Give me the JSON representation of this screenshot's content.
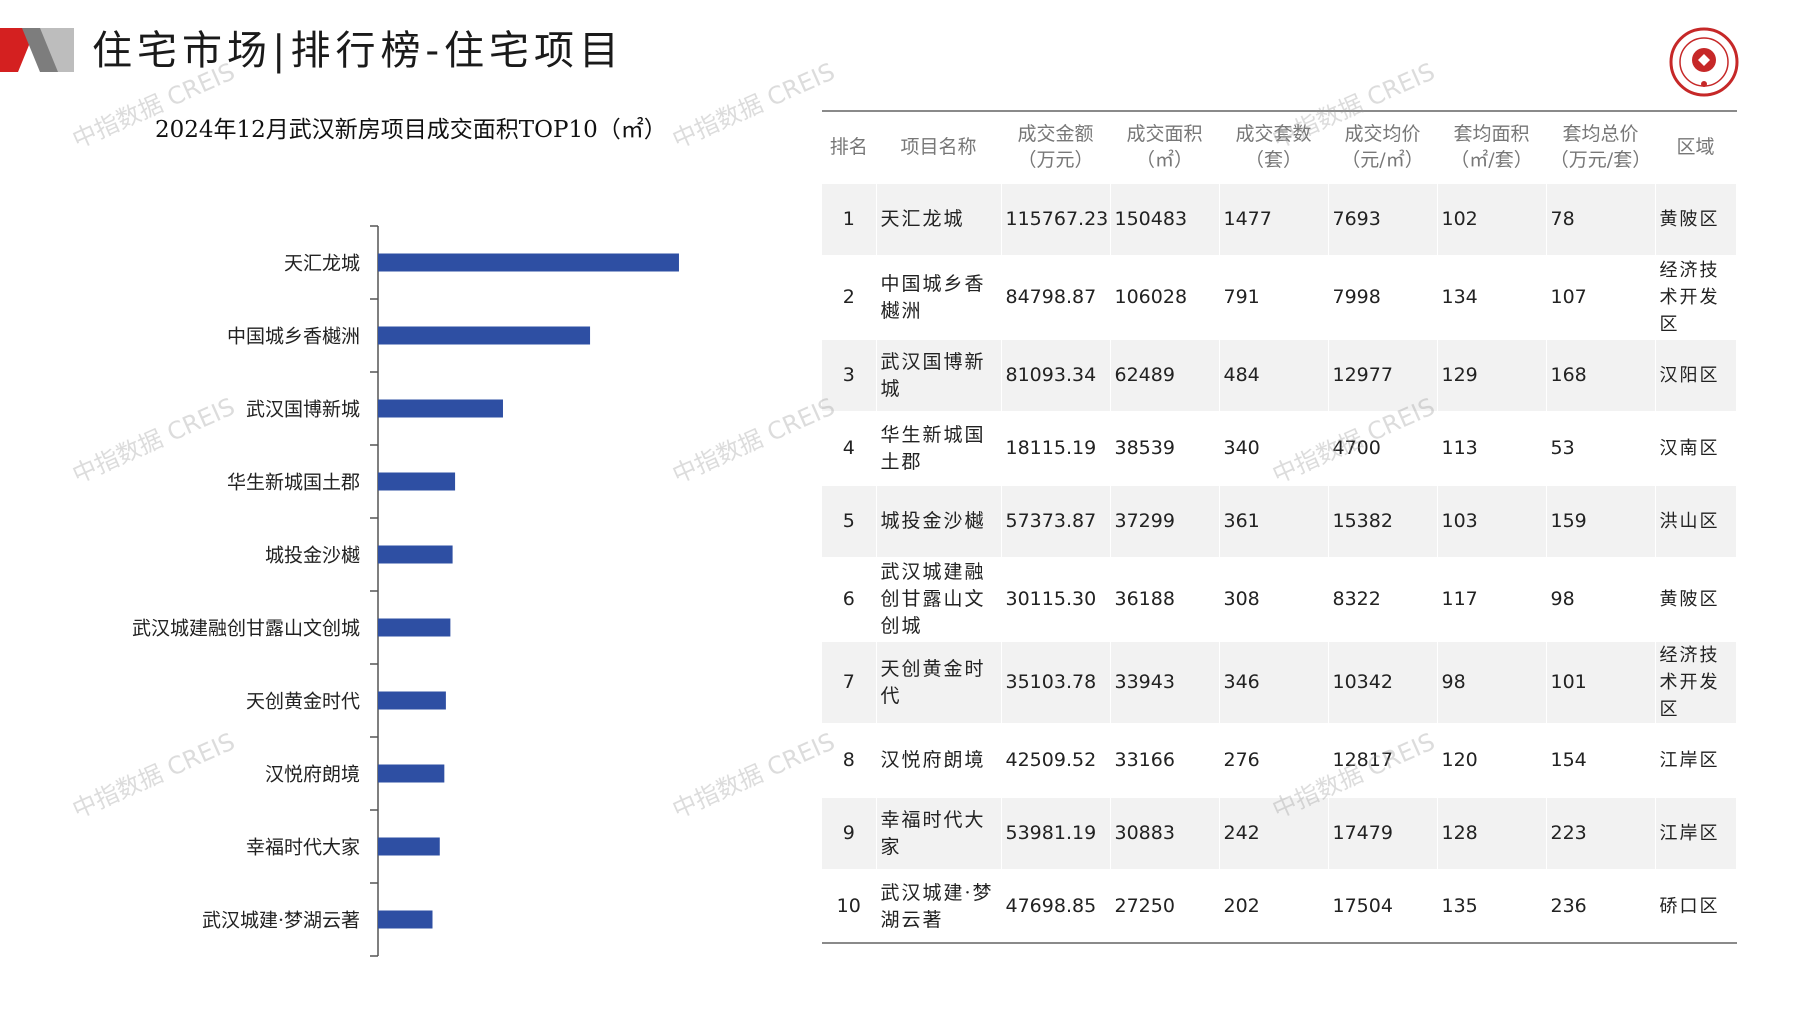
{
  "header": {
    "title": "住宅市场|排行榜-住宅项目",
    "accent_color": "#d42020"
  },
  "chart_data": {
    "type": "bar",
    "orientation": "horizontal",
    "title": "2024年12月武汉新房项目成交面积TOP10（㎡）",
    "categories": [
      "天汇龙城",
      "中国城乡香樾洲",
      "武汉国博新城",
      "华生新城国土郡",
      "城投金沙樾",
      "武汉城建融创甘露山文创城",
      "天创黄金时代",
      "汉悦府朗境",
      "幸福时代大家",
      "武汉城建·梦湖云著"
    ],
    "values": [
      150483,
      106028,
      62489,
      38539,
      37299,
      36188,
      33943,
      33166,
      30883,
      27250
    ],
    "xlim": [
      0,
      170000
    ],
    "bar_color": "#2e4fa3",
    "grid": false,
    "legend": "none"
  },
  "table": {
    "headers": [
      "排名",
      "项目名称",
      "成交金额（万元）",
      "成交面积（㎡）",
      "成交套数（套）",
      "成交均价（元/㎡）",
      "套均面积（㎡/套）",
      "套均总价（万元/套）",
      "区域"
    ],
    "rows": [
      [
        "1",
        "天汇龙城",
        "115767.23",
        "150483",
        "1477",
        "7693",
        "102",
        "78",
        "黄陂区"
      ],
      [
        "2",
        "中国城乡香樾洲",
        "84798.87",
        "106028",
        "791",
        "7998",
        "134",
        "107",
        "经济技术开发区"
      ],
      [
        "3",
        "武汉国博新城",
        "81093.34",
        "62489",
        "484",
        "12977",
        "129",
        "168",
        "汉阳区"
      ],
      [
        "4",
        "华生新城国土郡",
        "18115.19",
        "38539",
        "340",
        "4700",
        "113",
        "53",
        "汉南区"
      ],
      [
        "5",
        "城投金沙樾",
        "57373.87",
        "37299",
        "361",
        "15382",
        "103",
        "159",
        "洪山区"
      ],
      [
        "6",
        "武汉城建融创甘露山文创城",
        "30115.30",
        "36188",
        "308",
        "8322",
        "117",
        "98",
        "黄陂区"
      ],
      [
        "7",
        "天创黄金时代",
        "35103.78",
        "33943",
        "346",
        "10342",
        "98",
        "101",
        "经济技术开发区"
      ],
      [
        "8",
        "汉悦府朗境",
        "42509.52",
        "33166",
        "276",
        "12817",
        "120",
        "154",
        "江岸区"
      ],
      [
        "9",
        "幸福时代大家",
        "53981.19",
        "30883",
        "242",
        "17479",
        "128",
        "223",
        "江岸区"
      ],
      [
        "10",
        "武汉城建·梦湖云著",
        "47698.85",
        "27250",
        "202",
        "17504",
        "135",
        "236",
        "硚口区"
      ]
    ]
  },
  "watermark": {
    "text": "中指数据 CREIS"
  }
}
